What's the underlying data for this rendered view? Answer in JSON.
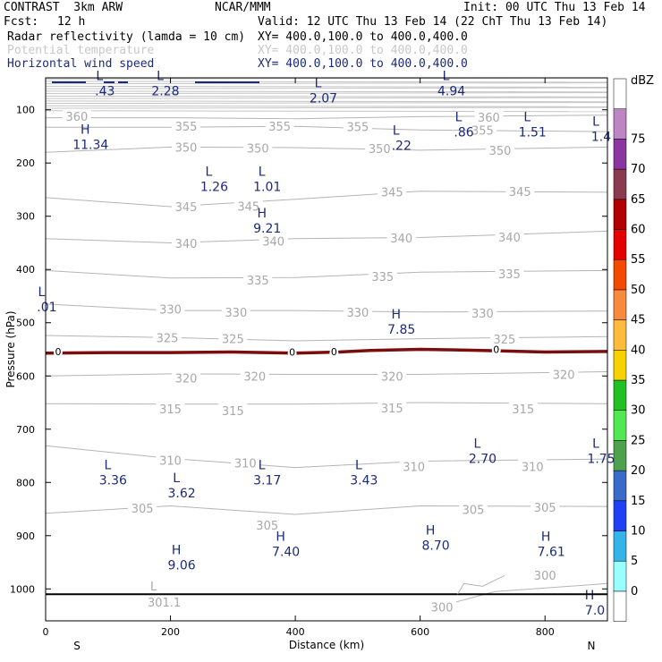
{
  "header": {
    "model": "CONTRAST  3km ARW",
    "org": "NCAR/MMM",
    "init": "Init: 00 UTC Thu 13 Feb 14",
    "fcst_label": "Fcst:",
    "fcst_value": "12 h",
    "valid": "Valid: 12 UTC Thu 13 Feb 14 (22 ChT Thu 13 Feb 14)"
  },
  "fields": [
    {
      "name": "Radar reflectivity (lamda = 10 cm)",
      "xy": "XY= 400.0,100.0 to 400.0,400.0",
      "color": "#000000"
    },
    {
      "name": "Potential temperature",
      "xy": "XY= 400.0,100.0 to 400.0,400.0",
      "color": "#c8c8c8"
    },
    {
      "name": "Horizontal wind speed",
      "xy": "XY= 400.0,100.0 to 400.0,400.0",
      "color": "#1c2a7a"
    }
  ],
  "chart_data": {
    "type": "cross-section contour",
    "xlabel": "Distance (km)",
    "ylabel": "Pressure (hPa)",
    "x_ticks": [
      "0",
      "200",
      "400",
      "600",
      "800"
    ],
    "y_ticks": [
      "100",
      "200",
      "300",
      "400",
      "500",
      "600",
      "700",
      "800",
      "900",
      "1000"
    ],
    "xlim": [
      0,
      900
    ],
    "ylim": [
      1060,
      40
    ],
    "edge_labels": {
      "left": "S",
      "right": "N"
    },
    "colorbar": {
      "unit": "dBZ",
      "levels": [
        "0",
        "5",
        "10",
        "15",
        "20",
        "25",
        "30",
        "35",
        "40",
        "45",
        "50",
        "55",
        "60",
        "65",
        "70",
        "75"
      ],
      "colors": [
        "#ffffff",
        "#99ffff",
        "#33b5ea",
        "#1f40f5",
        "#3a6bc8",
        "#4ea24e",
        "#51e851",
        "#22c024",
        "#f6d200",
        "#ffbc3c",
        "#f78a3c",
        "#f34a00",
        "#e50000",
        "#b00000",
        "#8b3b4f",
        "#8a35a0",
        "#bd85c2",
        "#ffffff"
      ]
    },
    "theta_isotherms": [
      {
        "level": 360,
        "pts": [
          [
            0,
            115
          ],
          [
            200,
            115
          ],
          [
            400,
            117
          ],
          [
            600,
            113
          ],
          [
            900,
            110
          ]
        ],
        "labels": [
          [
            50,
            112
          ],
          [
            710,
            114
          ]
        ]
      },
      {
        "level": 355,
        "pts": [
          [
            0,
            133
          ],
          [
            200,
            133
          ],
          [
            400,
            131
          ],
          [
            600,
            138
          ],
          [
            900,
            141
          ]
        ],
        "labels": [
          [
            225,
            131
          ],
          [
            375,
            131
          ],
          [
            500,
            132
          ],
          [
            700,
            138
          ]
        ]
      },
      {
        "level": 350,
        "pts": [
          [
            0,
            180
          ],
          [
            200,
            170
          ],
          [
            400,
            171
          ],
          [
            600,
            176
          ],
          [
            900,
            170
          ]
        ],
        "labels": [
          [
            225,
            170
          ],
          [
            340,
            172
          ],
          [
            535,
            173
          ],
          [
            728,
            176
          ]
        ]
      },
      {
        "level": 345,
        "pts": [
          [
            0,
            265
          ],
          [
            200,
            282
          ],
          [
            400,
            268
          ],
          [
            600,
            253
          ],
          [
            900,
            255
          ]
        ],
        "labels": [
          [
            225,
            282
          ],
          [
            325,
            281
          ],
          [
            555,
            254
          ],
          [
            760,
            253
          ]
        ]
      },
      {
        "level": 340,
        "pts": [
          [
            0,
            342
          ],
          [
            200,
            350
          ],
          [
            400,
            342
          ],
          [
            600,
            340
          ],
          [
            900,
            328
          ]
        ],
        "labels": [
          [
            225,
            351
          ],
          [
            365,
            347
          ],
          [
            570,
            341
          ],
          [
            743,
            339
          ]
        ]
      },
      {
        "level": 335,
        "pts": [
          [
            0,
            402
          ],
          [
            200,
            416
          ],
          [
            400,
            415
          ],
          [
            600,
            405
          ],
          [
            900,
            402
          ]
        ],
        "labels": [
          [
            340,
            420
          ],
          [
            540,
            413
          ],
          [
            743,
            408
          ]
        ]
      },
      {
        "level": 330,
        "pts": [
          [
            0,
            465
          ],
          [
            200,
            477
          ],
          [
            400,
            477
          ],
          [
            600,
            480
          ],
          [
            900,
            478
          ]
        ],
        "labels": [
          [
            200,
            474
          ],
          [
            305,
            480
          ],
          [
            500,
            480
          ],
          [
            700,
            482
          ]
        ]
      },
      {
        "level": 325,
        "pts": [
          [
            0,
            524
          ],
          [
            200,
            528
          ],
          [
            400,
            534
          ],
          [
            600,
            530
          ],
          [
            900,
            526
          ]
        ],
        "labels": [
          [
            195,
            528
          ],
          [
            300,
            530
          ],
          [
            735,
            531
          ]
        ]
      },
      {
        "level": 320,
        "pts": [
          [
            0,
            600
          ],
          [
            200,
            596
          ],
          [
            400,
            597
          ],
          [
            600,
            597
          ],
          [
            900,
            592
          ]
        ],
        "labels": [
          [
            225,
            604
          ],
          [
            335,
            600
          ],
          [
            555,
            600
          ],
          [
            830,
            597
          ]
        ]
      },
      {
        "level": 315,
        "pts": [
          [
            0,
            652
          ],
          [
            200,
            653
          ],
          [
            400,
            653
          ],
          [
            600,
            650
          ],
          [
            900,
            652
          ]
        ],
        "labels": [
          [
            200,
            662
          ],
          [
            300,
            665
          ],
          [
            555,
            660
          ],
          [
            765,
            662
          ]
        ]
      },
      {
        "level": 310,
        "pts": [
          [
            0,
            731
          ],
          [
            200,
            755
          ],
          [
            400,
            772
          ],
          [
            600,
            760
          ],
          [
            900,
            756
          ]
        ],
        "labels": [
          [
            200,
            758
          ],
          [
            320,
            763
          ],
          [
            590,
            770
          ],
          [
            780,
            770
          ]
        ]
      },
      {
        "level": 305,
        "pts": [
          [
            0,
            858
          ],
          [
            200,
            844
          ],
          [
            400,
            860
          ],
          [
            600,
            844
          ],
          [
            900,
            845
          ]
        ],
        "labels": [
          [
            155,
            848
          ],
          [
            355,
            880
          ],
          [
            685,
            851
          ],
          [
            800,
            847
          ]
        ]
      },
      {
        "level": 300,
        "pts": [
          [
            640,
            1030
          ],
          [
            720,
            1005
          ],
          [
            900,
            990
          ]
        ],
        "labels": [
          [
            635,
            1034
          ],
          [
            800,
            974
          ]
        ]
      }
    ],
    "theta_extrema": [
      {
        "kind": "L",
        "value": "301.1",
        "x": 190,
        "y": 1030
      }
    ],
    "reflectivity_contour": {
      "level": "0",
      "pts": [
        [
          0,
          557
        ],
        [
          100,
          556
        ],
        [
          200,
          556
        ],
        [
          300,
          555
        ],
        [
          400,
          557
        ],
        [
          470,
          555
        ],
        [
          520,
          552
        ],
        [
          600,
          550
        ],
        [
          700,
          552
        ],
        [
          800,
          555
        ],
        [
          900,
          554
        ]
      ],
      "labels": [
        [
          20,
          556
        ],
        [
          395,
          557
        ],
        [
          462,
          556
        ],
        [
          722,
          552
        ]
      ]
    },
    "wind_extrema": [
      {
        "kind": "L",
        "value": ".43",
        "x": 95,
        "y": 64
      },
      {
        "kind": "L",
        "value": "2.28",
        "x": 192,
        "y": 64
      },
      {
        "kind": "L",
        "value": "2.07",
        "x": 445,
        "y": 78
      },
      {
        "kind": "L",
        "value": "4.94",
        "x": 650,
        "y": 64
      },
      {
        "kind": "H",
        "value": "11.34",
        "x": 72,
        "y": 165
      },
      {
        "kind": "L",
        "value": ".86",
        "x": 670,
        "y": 142
      },
      {
        "kind": "L",
        "value": "1.51",
        "x": 780,
        "y": 142
      },
      {
        "kind": "L",
        "value": "1.4",
        "x": 890,
        "y": 150
      },
      {
        "kind": "L",
        "value": ".22",
        "x": 570,
        "y": 167
      },
      {
        "kind": "L",
        "value": "1.26",
        "x": 270,
        "y": 244
      },
      {
        "kind": "L",
        "value": "1.01",
        "x": 355,
        "y": 244
      },
      {
        "kind": "H",
        "value": "9.21",
        "x": 355,
        "y": 322
      },
      {
        "kind": "H",
        "value": "7.85",
        "x": 570,
        "y": 512
      },
      {
        "kind": "L",
        "value": "2.70",
        "x": 700,
        "y": 755
      },
      {
        "kind": "L",
        "value": "1.75",
        "x": 890,
        "y": 755
      },
      {
        "kind": "L",
        "value": "3.36",
        "x": 108,
        "y": 795
      },
      {
        "kind": "L",
        "value": "3.17",
        "x": 355,
        "y": 795
      },
      {
        "kind": "L",
        "value": "3.43",
        "x": 510,
        "y": 795
      },
      {
        "kind": "L",
        "value": "3.62",
        "x": 218,
        "y": 820
      },
      {
        "kind": "H",
        "value": "8.70",
        "x": 625,
        "y": 918
      },
      {
        "kind": "H",
        "value": "7.40",
        "x": 385,
        "y": 930
      },
      {
        "kind": "H",
        "value": "7.61",
        "x": 810,
        "y": 930
      },
      {
        "kind": "H",
        "value": "9.06",
        "x": 218,
        "y": 955
      },
      {
        "kind": "H",
        "value": "7.0",
        "x": 880,
        "y": 1040
      },
      {
        "kind": "L",
        "value": ".01",
        "x": 2,
        "y": 470
      }
    ]
  }
}
